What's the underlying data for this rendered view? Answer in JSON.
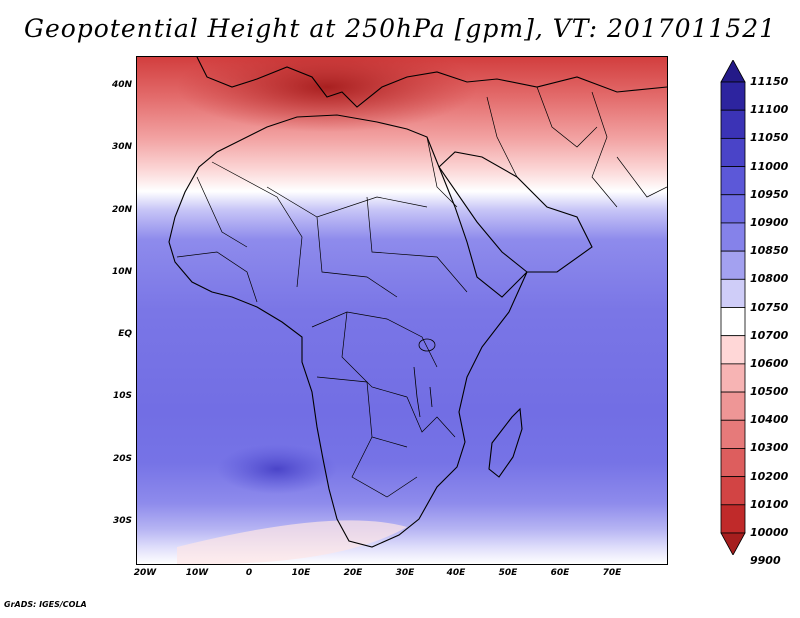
{
  "title": "Geopotential Height at 250hPa [gpm], VT: 2017011521",
  "credit": "GrADS: IGES/COLA",
  "map": {
    "lat_labels": [
      "40N",
      "30N",
      "20N",
      "10N",
      "EQ",
      "10S",
      "20S",
      "30S"
    ],
    "lon_labels": [
      "20W",
      "10W",
      "0",
      "10E",
      "20E",
      "30E",
      "40E",
      "50E",
      "60E",
      "70E"
    ],
    "lat_range": [
      -37,
      45
    ],
    "lon_range": [
      -22,
      80
    ]
  },
  "colorbar": {
    "labels": [
      "11150",
      "11100",
      "11050",
      "11000",
      "10950",
      "10900",
      "10850",
      "10800",
      "10750",
      "10700",
      "10600",
      "10500",
      "10400",
      "10300",
      "10200",
      "10100",
      "10000",
      "9900"
    ],
    "colors": [
      "#241a88",
      "#2d249f",
      "#3b33b6",
      "#4a44c8",
      "#5c58d8",
      "#6d6ae2",
      "#8582ea",
      "#a3a1f0",
      "#cfcdf8",
      "#ffffff",
      "#ffd7d7",
      "#f7b4b4",
      "#ee9696",
      "#e67a7a",
      "#dd5e5e",
      "#d24444",
      "#c02a2a",
      "#a61e1e"
    ]
  },
  "chart_data": {
    "type": "heatmap",
    "title": "Geopotential Height at 250hPa [gpm], VT: 2017011521",
    "variable": "Geopotential Height at 250hPa",
    "units": "gpm",
    "valid_time": "2017011521",
    "x_ticks": [
      "20W",
      "10W",
      "0",
      "10E",
      "20E",
      "30E",
      "40E",
      "50E",
      "60E",
      "70E"
    ],
    "y_ticks": [
      "40N",
      "30N",
      "20N",
      "10N",
      "EQ",
      "10S",
      "20S",
      "30S"
    ],
    "levels": [
      9900,
      10000,
      10100,
      10200,
      10300,
      10400,
      10500,
      10600,
      10700,
      10750,
      10800,
      10850,
      10900,
      10950,
      11000,
      11050,
      11100,
      11150
    ]
  }
}
